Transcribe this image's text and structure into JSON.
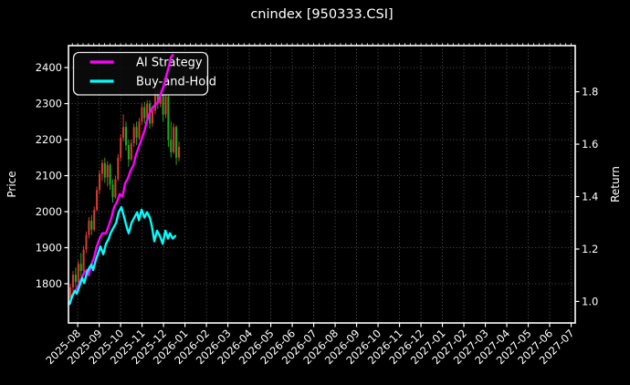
{
  "title": "cnindex [950333.CSI]",
  "legend": {
    "items": [
      {
        "label": "AI Strategy",
        "color": "#ff00ff"
      },
      {
        "label": "Buy-and-Hold",
        "color": "#00ffff"
      }
    ]
  },
  "axes": {
    "left_label": "Price",
    "right_label": "Return"
  },
  "chart_data": {
    "type": "candlestick+line",
    "title": "cnindex [950333.CSI]",
    "ylabel_left": "Price",
    "ylabel_right": "Return",
    "grid": "dotted",
    "legend_position": "upper-left",
    "x_tick_labels": [
      "2025-08",
      "2025-09",
      "2025-10",
      "2025-11",
      "2025-12",
      "2026-01",
      "2026-02",
      "2026-03",
      "2026-04",
      "2026-05",
      "2026-06",
      "2026-07",
      "2026-08",
      "2026-09",
      "2026-10",
      "2026-11",
      "2026-12",
      "2027-01",
      "2027-02",
      "2027-03",
      "2027-04",
      "2027-05",
      "2027-06",
      "2027-07"
    ],
    "xlim_months": [
      -0.43,
      23.19
    ],
    "price_ticks": [
      1800,
      1900,
      2000,
      2100,
      2200,
      2300,
      2400
    ],
    "price_ylim": [
      1691,
      2461
    ],
    "return_ticks": [
      1.0,
      1.2,
      1.4,
      1.6,
      1.8
    ],
    "return_ylim": [
      0.918,
      1.976
    ],
    "candles": {
      "up_color": "#d23b2f",
      "down_color": "#1fa81f",
      "x_start_month": -0.34,
      "x_step_month": 0.1234,
      "ohlc": [
        [
          1760,
          1800,
          1750,
          1790
        ],
        [
          1790,
          1835,
          1775,
          1825
        ],
        [
          1825,
          1845,
          1790,
          1805
        ],
        [
          1805,
          1865,
          1800,
          1855
        ],
        [
          1855,
          1885,
          1820,
          1835
        ],
        [
          1835,
          1905,
          1830,
          1895
        ],
        [
          1895,
          1945,
          1885,
          1935
        ],
        [
          1935,
          1985,
          1925,
          1975
        ],
        [
          1975,
          1990,
          1935,
          1950
        ],
        [
          1950,
          2015,
          1945,
          2005
        ],
        [
          2005,
          2070,
          2000,
          2060
        ],
        [
          2060,
          2115,
          2050,
          2105
        ],
        [
          2105,
          2145,
          2085,
          2135
        ],
        [
          2135,
          2150,
          2080,
          2095
        ],
        [
          2095,
          2140,
          2070,
          2130
        ],
        [
          2130,
          2135,
          2060,
          2075
        ],
        [
          2075,
          2090,
          2025,
          2040
        ],
        [
          2040,
          2100,
          2035,
          2090
        ],
        [
          2090,
          2160,
          2085,
          2150
        ],
        [
          2150,
          2215,
          2140,
          2205
        ],
        [
          2205,
          2270,
          2195,
          2235
        ],
        [
          2235,
          2250,
          2170,
          2185
        ],
        [
          2185,
          2200,
          2125,
          2145
        ],
        [
          2145,
          2200,
          2140,
          2190
        ],
        [
          2190,
          2245,
          2180,
          2235
        ],
        [
          2235,
          2250,
          2185,
          2205
        ],
        [
          2205,
          2260,
          2200,
          2250
        ],
        [
          2250,
          2300,
          2240,
          2290
        ],
        [
          2290,
          2305,
          2245,
          2260
        ],
        [
          2260,
          2310,
          2250,
          2300
        ],
        [
          2300,
          2310,
          2230,
          2245
        ],
        [
          2245,
          2290,
          2235,
          2280
        ],
        [
          2280,
          2340,
          2270,
          2330
        ],
        [
          2330,
          2340,
          2285,
          2300
        ],
        [
          2300,
          2345,
          2290,
          2335
        ],
        [
          2335,
          2340,
          2250,
          2270
        ],
        [
          2270,
          2330,
          2260,
          2320
        ],
        [
          2320,
          2325,
          2180,
          2200
        ],
        [
          2200,
          2250,
          2150,
          2165
        ],
        [
          2165,
          2245,
          2160,
          2235
        ],
        [
          2235,
          2240,
          2130,
          2150
        ],
        [
          2150,
          2195,
          2140,
          2180
        ]
      ]
    },
    "series": [
      {
        "name": "AI Strategy",
        "axis": "return",
        "color": "#ff00ff",
        "width": 2.4,
        "x": [
          -0.38,
          -0.21,
          -0.04,
          0.13,
          0.3,
          0.43,
          0.51,
          0.64,
          0.77,
          0.89,
          1.02,
          1.15,
          1.32,
          1.45,
          1.57,
          1.7,
          1.83,
          1.96,
          2.09,
          2.21,
          2.34,
          2.47,
          2.6,
          2.72,
          2.85,
          2.98,
          3.11,
          3.23,
          3.36,
          3.49,
          3.62,
          3.74,
          3.87,
          4.0,
          4.13,
          4.26,
          4.34,
          4.43
        ],
        "y": [
          0.99,
          1.03,
          1.05,
          1.08,
          1.11,
          1.12,
          1.1,
          1.14,
          1.17,
          1.21,
          1.24,
          1.26,
          1.26,
          1.29,
          1.32,
          1.36,
          1.38,
          1.41,
          1.4,
          1.45,
          1.47,
          1.5,
          1.52,
          1.56,
          1.59,
          1.62,
          1.65,
          1.69,
          1.72,
          1.74,
          1.75,
          1.76,
          1.79,
          1.82,
          1.86,
          1.9,
          1.93,
          1.94
        ]
      },
      {
        "name": "Buy-and-Hold",
        "axis": "return",
        "color": "#00ffff",
        "width": 2.4,
        "x": [
          -0.38,
          -0.26,
          -0.13,
          -0.04,
          0.09,
          0.21,
          0.3,
          0.43,
          0.55,
          0.64,
          0.72,
          0.85,
          0.98,
          1.06,
          1.19,
          1.32,
          1.45,
          1.53,
          1.66,
          1.79,
          1.91,
          2.04,
          2.17,
          2.3,
          2.38,
          2.51,
          2.64,
          2.77,
          2.85,
          2.98,
          3.11,
          3.23,
          3.36,
          3.45,
          3.57,
          3.7,
          3.83,
          3.96,
          4.09,
          4.21,
          4.3,
          4.43,
          4.55
        ],
        "y": [
          0.99,
          1.02,
          1.04,
          1.03,
          1.06,
          1.09,
          1.07,
          1.11,
          1.13,
          1.14,
          1.12,
          1.16,
          1.19,
          1.21,
          1.18,
          1.22,
          1.24,
          1.26,
          1.28,
          1.3,
          1.34,
          1.36,
          1.32,
          1.28,
          1.26,
          1.3,
          1.32,
          1.34,
          1.31,
          1.35,
          1.32,
          1.34,
          1.32,
          1.29,
          1.23,
          1.27,
          1.25,
          1.22,
          1.27,
          1.24,
          1.26,
          1.24,
          1.25
        ]
      }
    ]
  }
}
